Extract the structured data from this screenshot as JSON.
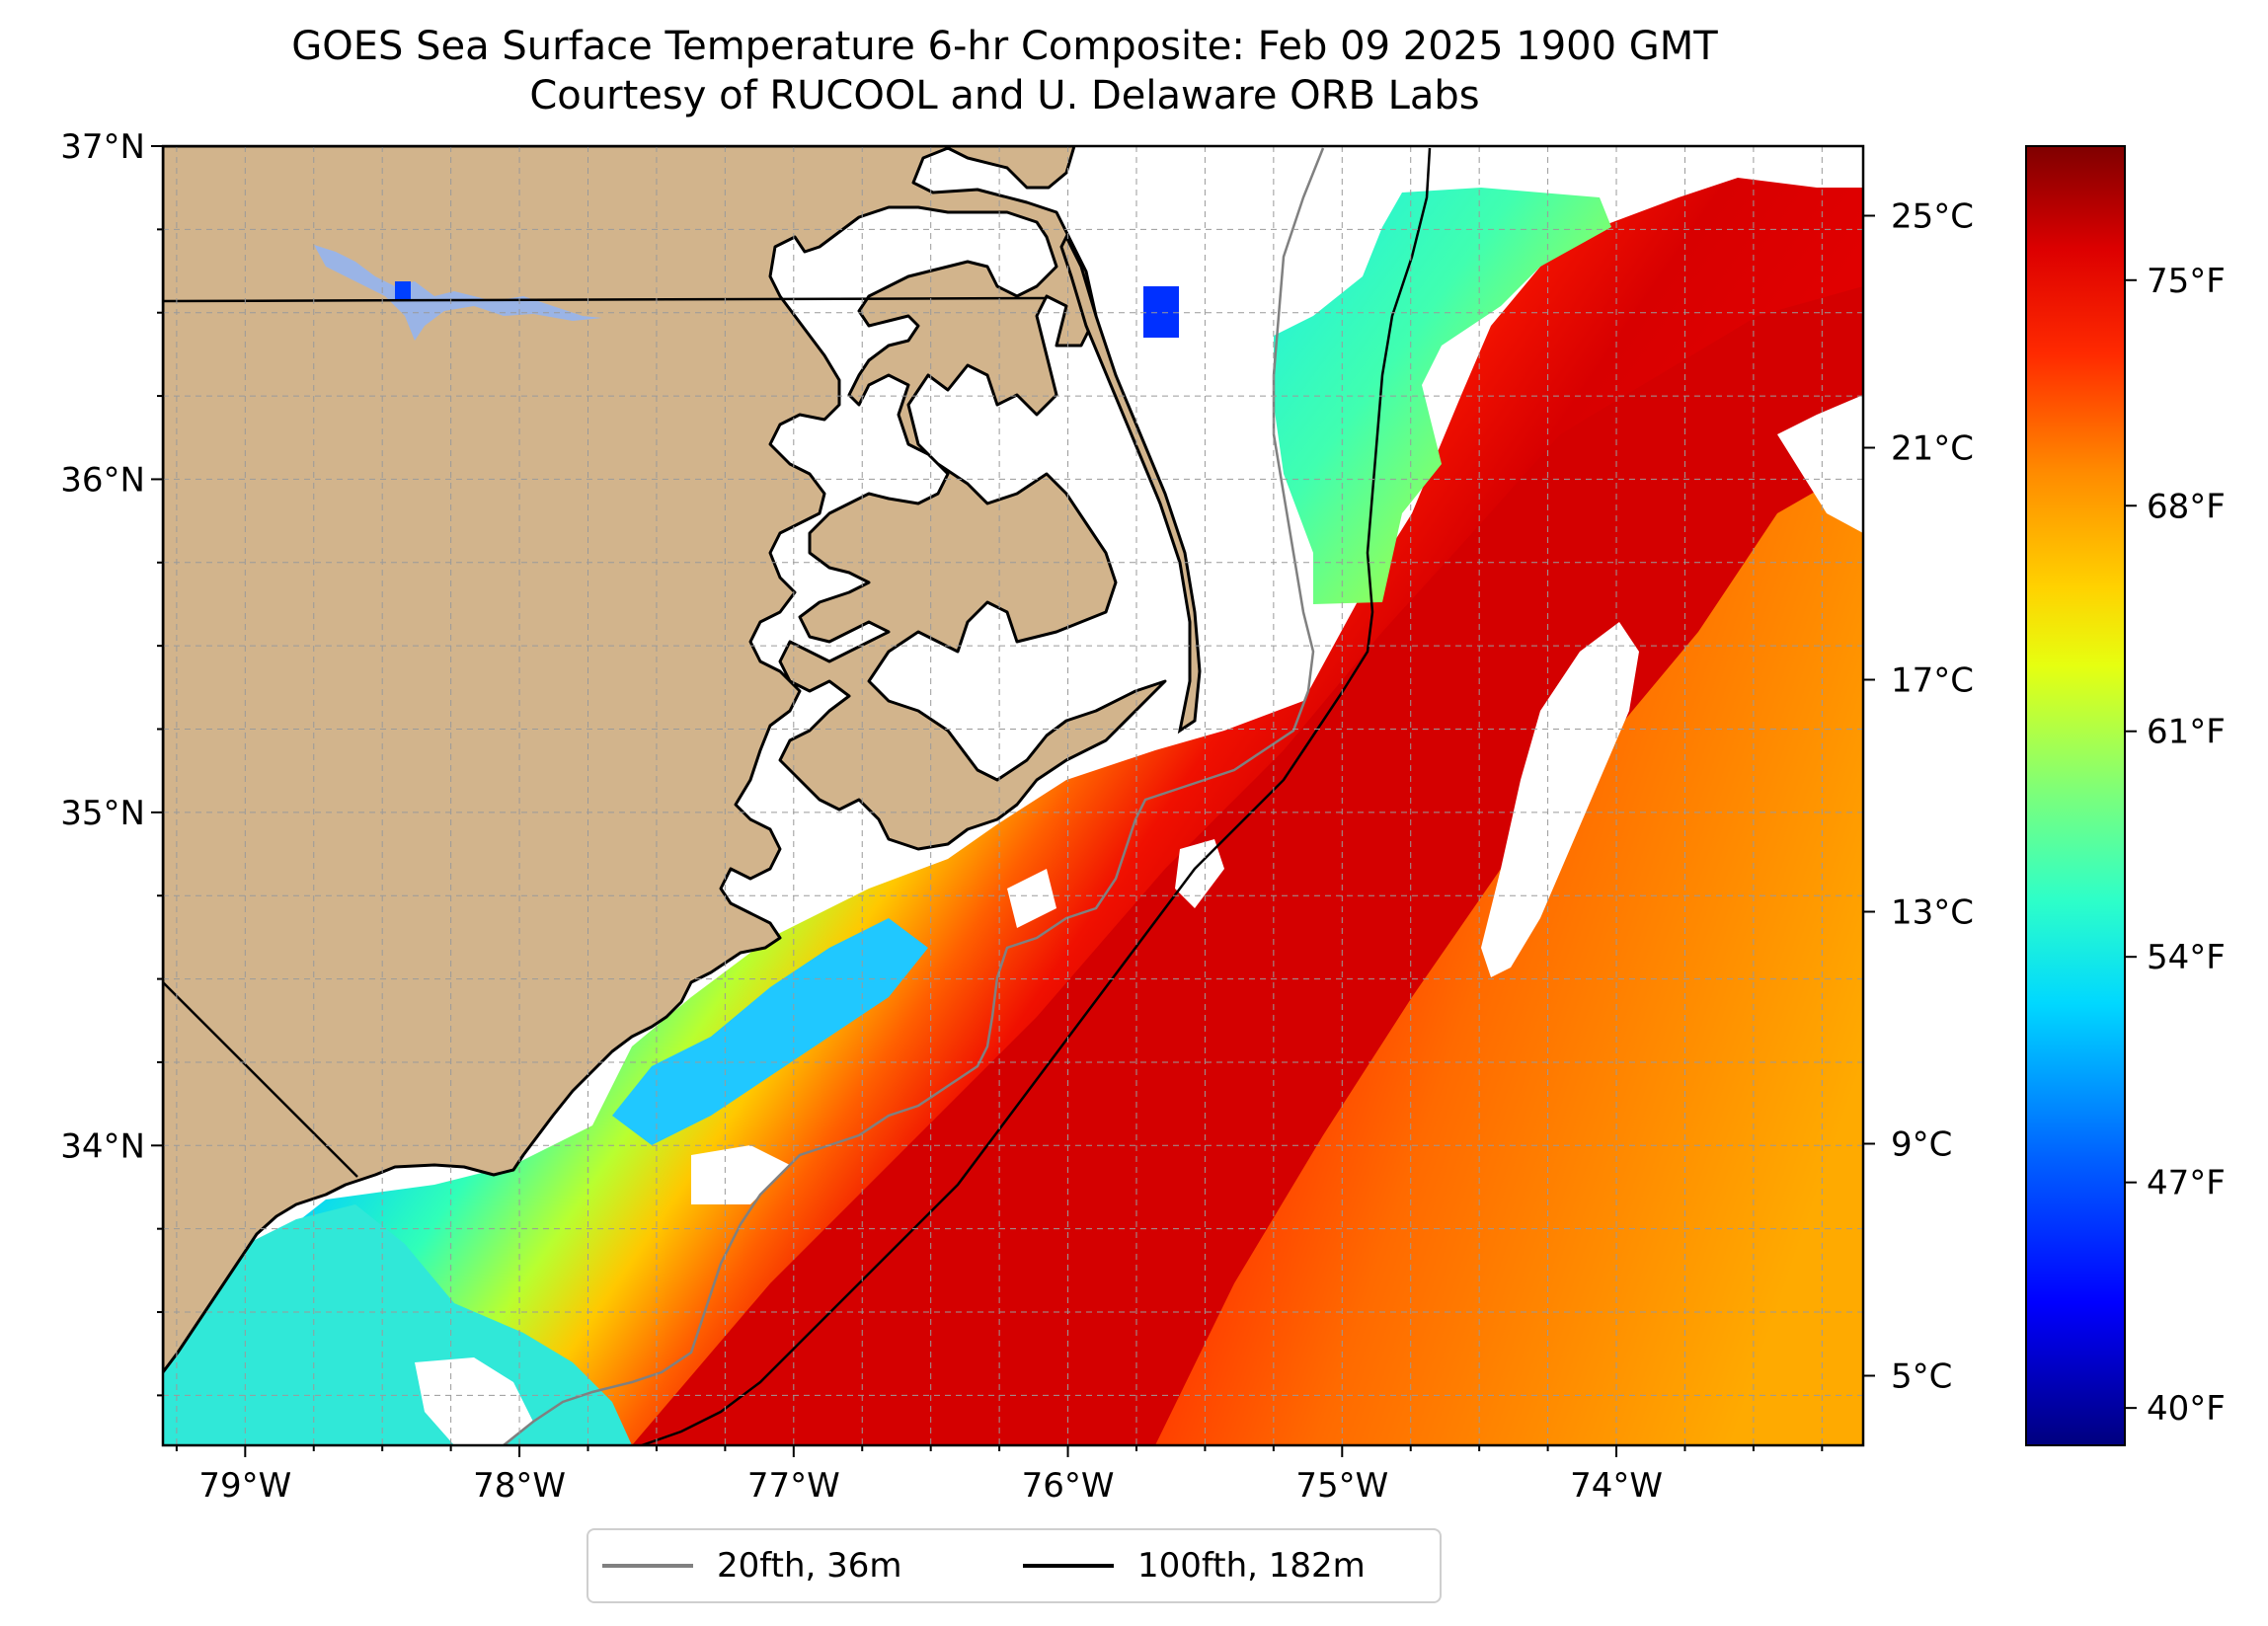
{
  "title": {
    "line1": "GOES Sea Surface Temperature 6-hr Composite: Feb 09 2025 1900 GMT",
    "line2": "Courtesy of RUCOOL and U. Delaware ORB Labs"
  },
  "map": {
    "lon_range": [
      -79.3,
      -73.1
    ],
    "lat_range": [
      33.1,
      37.0
    ],
    "lat_ticks": [
      {
        "value": 37,
        "label": "37°N"
      },
      {
        "value": 36,
        "label": "36°N"
      },
      {
        "value": 35,
        "label": "35°N"
      },
      {
        "value": 34,
        "label": "34°N"
      }
    ],
    "lon_ticks": [
      {
        "value": -79,
        "label": "79°W"
      },
      {
        "value": -78,
        "label": "78°W"
      },
      {
        "value": -77,
        "label": "77°W"
      },
      {
        "value": -76,
        "label": "76°W"
      },
      {
        "value": -75,
        "label": "75°W"
      },
      {
        "value": -74,
        "label": "74°W"
      }
    ],
    "gridlines": "dashed",
    "land_color": "#d2b48c",
    "isobath_20fth_color": "#808080",
    "isobath_100fth_color": "#000000"
  },
  "colorbar": {
    "celsius_range": [
      3.8,
      26.2
    ],
    "celsius_ticks": [
      {
        "value": 25,
        "label": "25°C"
      },
      {
        "value": 21,
        "label": "21°C"
      },
      {
        "value": 17,
        "label": "17°C"
      },
      {
        "value": 13,
        "label": "13°C"
      },
      {
        "value": 9,
        "label": "9°C"
      },
      {
        "value": 5,
        "label": "5°C"
      }
    ],
    "fahrenheit_ticks": [
      {
        "value": 75,
        "label": "75°F"
      },
      {
        "value": 68,
        "label": "68°F"
      },
      {
        "value": 61,
        "label": "61°F"
      },
      {
        "value": 54,
        "label": "54°F"
      },
      {
        "value": 47,
        "label": "47°F"
      },
      {
        "value": 40,
        "label": "40°F"
      }
    ],
    "colormap": "jet"
  },
  "legend": {
    "items": [
      {
        "label": "20fth, 36m",
        "color": "#808080"
      },
      {
        "label": "100fth, 182m",
        "color": "#000000"
      }
    ],
    "placement": "bottom-center"
  }
}
